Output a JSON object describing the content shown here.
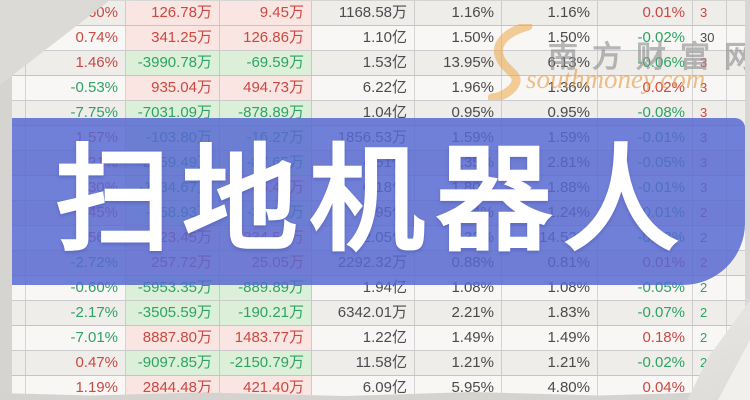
{
  "banner": {
    "title": "扫地机器人",
    "color": "#5668d1"
  },
  "watermark": {
    "site_name": "南方财富网",
    "site_domain": "southmoney.com",
    "accent_color": "#e89a42"
  },
  "table": {
    "columns": [
      "change_pct",
      "net_inflow_main",
      "net_inflow_retail",
      "turnover_amount",
      "ratio_pct_1",
      "ratio_pct_2",
      "ratio_pct_3",
      "clipped_right_col"
    ],
    "rows": [
      [
        "0.60%",
        "126.78万",
        "9.45万",
        "1168.58万",
        "1.16%",
        "1.16%",
        "0.01%",
        "3"
      ],
      [
        "0.74%",
        "341.25万",
        "126.86万",
        "1.10亿",
        "1.50%",
        "1.50%",
        "-0.02%",
        "30"
      ],
      [
        "1.46%",
        "-3990.78万",
        "-69.59万",
        "1.53亿",
        "13.95%",
        "6.13%",
        "-0.06%",
        "3"
      ],
      [
        "-0.53%",
        "935.04万",
        "494.73万",
        "6.22亿",
        "1.96%",
        "1.36%",
        "0.02%",
        "3"
      ],
      [
        "-7.75%",
        "-7031.09万",
        "-878.89万",
        "1.04亿",
        "0.95%",
        "0.95%",
        "-0.08%",
        "3"
      ],
      [
        "1.57%",
        "-103.80万",
        "-16.27万",
        "1856.53万",
        "1.59%",
        "1.59%",
        "-0.01%",
        "3"
      ],
      [
        "0.21%",
        "-2359.49万",
        "-87.65万",
        "4.51亿",
        "2.35%",
        "2.81%",
        "-0.05%",
        "3"
      ],
      [
        "0.30%",
        "-1134.67万",
        "65.43万",
        "6.18亿",
        "1.80%",
        "1.88%",
        "-0.01%",
        "3"
      ],
      [
        "0.45%",
        "-758.93万",
        "-32.10万",
        "1.95亿",
        "1.24%",
        "1.24%",
        "-0.01%",
        "2"
      ],
      [
        "0.56%",
        "5123.45万",
        "234.56万",
        "2.05亿",
        "4.32%",
        "14.52%",
        "-0.02%",
        "2"
      ],
      [
        "-2.72%",
        "257.72万",
        "25.05万",
        "2292.32万",
        "0.88%",
        "0.81%",
        "0.01%",
        "2"
      ],
      [
        "-0.60%",
        "-5953.35万",
        "-889.89万",
        "1.94亿",
        "1.08%",
        "1.08%",
        "-0.05%",
        "2"
      ],
      [
        "-2.17%",
        "-3505.59万",
        "-190.21万",
        "6342.01万",
        "2.21%",
        "1.83%",
        "-0.07%",
        "2"
      ],
      [
        "-7.01%",
        "8887.80万",
        "1483.77万",
        "1.22亿",
        "1.49%",
        "1.49%",
        "0.18%",
        "2"
      ],
      [
        "0.47%",
        "-9097.85万",
        "-2150.79万",
        "11.58亿",
        "1.21%",
        "1.21%",
        "-0.02%",
        "2"
      ],
      [
        "1.19%",
        "2844.48万",
        "421.40万",
        "6.09亿",
        "5.95%",
        "4.80%",
        "0.04%",
        "2"
      ]
    ],
    "clipped_col_colors": [
      "pos",
      "dark",
      "pos",
      "pos",
      "pos",
      "pos",
      "pos",
      "pos",
      "pos",
      "pos",
      "pos",
      "neg",
      "neg",
      "neg",
      "neg",
      "neg"
    ]
  },
  "colors": {
    "positive_text": "#cc4841",
    "negative_text": "#2fa364",
    "neutral_text": "#4c4c50",
    "positive_cell_bg": "#f9e5e1",
    "negative_cell_bg": "#dcefd9",
    "banner_overlay": "rgba(86,104,209,0.84)"
  }
}
